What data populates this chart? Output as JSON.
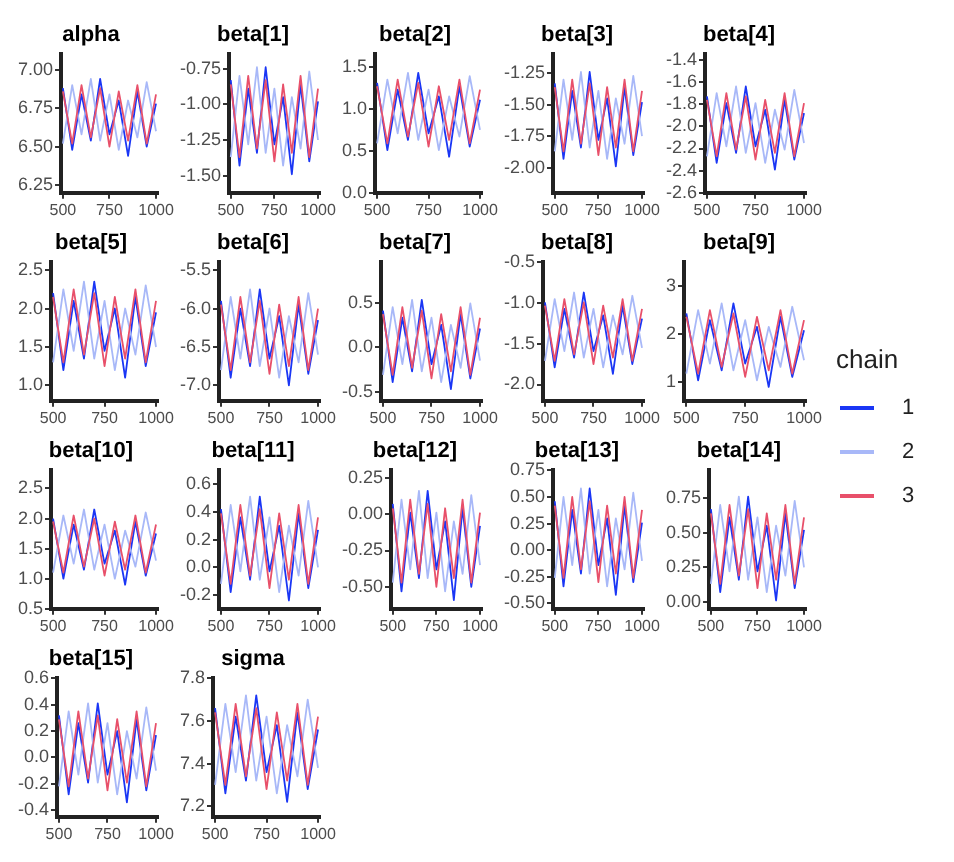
{
  "chart_data": [
    {
      "type": "line",
      "title": "alpha",
      "legend": "right",
      "legend_title": "chain",
      "x": [
        500,
        550,
        600,
        650,
        700,
        750,
        800,
        850,
        900,
        950,
        1000
      ],
      "xlim": [
        490,
        1010
      ],
      "xticks": [
        500,
        750,
        1000
      ],
      "ylim": [
        6.2,
        7.1
      ],
      "yticks": [
        {
          "value": 6.25,
          "label": "6.25"
        },
        {
          "value": 6.5,
          "label": "6.50"
        },
        6.75,
        {
          "value": 7,
          "label": "7.00"
        }
      ],
      "series": [
        {
          "name": "1",
          "color": "#1a36f5",
          "values": [
            6.88,
            6.48,
            6.84,
            6.54,
            6.94,
            6.58,
            6.8,
            6.44,
            6.86,
            6.5,
            6.78
          ]
        },
        {
          "name": "2",
          "color": "#a8b8f8",
          "values": [
            6.52,
            6.9,
            6.58,
            6.94,
            6.54,
            6.84,
            6.48,
            6.8,
            6.56,
            6.92,
            6.6
          ]
        },
        {
          "name": "3",
          "color": "#e8506a",
          "values": [
            6.86,
            6.52,
            6.9,
            6.56,
            6.88,
            6.5,
            6.86,
            6.54,
            6.9,
            6.52,
            6.84
          ]
        }
      ]
    },
    {
      "type": "line",
      "title": "beta[1]",
      "x": [
        500,
        550,
        600,
        650,
        700,
        750,
        800,
        850,
        900,
        950,
        1000
      ],
      "xlim": [
        490,
        1010
      ],
      "xticks": [
        500,
        750,
        1000
      ],
      "ylim": [
        -1.62,
        -0.65
      ],
      "yticks": [
        {
          "value": -1.5,
          "label": "-1.50"
        },
        -1.25,
        {
          "value": -1,
          "label": "-1.00"
        },
        -0.75
      ],
      "series": [
        {
          "name": "1",
          "color": "#1a36f5",
          "values": [
            -0.83,
            -1.43,
            -0.89,
            -1.34,
            -0.74,
            -1.28,
            -0.95,
            -1.49,
            -0.86,
            -1.4,
            -0.98
          ]
        },
        {
          "name": "2",
          "color": "#a8b8f8",
          "values": [
            -1.37,
            -0.8,
            -1.28,
            -0.74,
            -1.34,
            -0.89,
            -1.43,
            -0.95,
            -1.31,
            -0.77,
            -1.25
          ]
        },
        {
          "name": "3",
          "color": "#e8506a",
          "values": [
            -0.86,
            -1.37,
            -0.8,
            -1.31,
            -0.83,
            -1.4,
            -0.86,
            -1.34,
            -0.8,
            -1.37,
            -0.89
          ]
        }
      ]
    },
    {
      "type": "line",
      "title": "beta[2]",
      "x": [
        500,
        550,
        600,
        650,
        700,
        750,
        800,
        850,
        900,
        950,
        1000
      ],
      "xlim": [
        490,
        1010
      ],
      "xticks": [
        500,
        750,
        1000
      ],
      "ylim": [
        0,
        1.65
      ],
      "yticks": [
        {
          "value": 0,
          "label": "0.0"
        },
        0.5,
        {
          "value": 1,
          "label": "1.0"
        },
        1.5
      ],
      "series": [
        {
          "name": "1",
          "color": "#1a36f5",
          "values": [
            1.31,
            0.51,
            1.23,
            0.63,
            1.43,
            0.71,
            1.15,
            0.43,
            1.27,
            0.55,
            1.11
          ]
        },
        {
          "name": "2",
          "color": "#a8b8f8",
          "values": [
            0.59,
            1.35,
            0.71,
            1.43,
            0.63,
            1.23,
            0.51,
            1.15,
            0.67,
            1.39,
            0.75
          ]
        },
        {
          "name": "3",
          "color": "#e8506a",
          "values": [
            1.27,
            0.59,
            1.35,
            0.67,
            1.31,
            0.55,
            1.27,
            0.63,
            1.35,
            0.59,
            1.23
          ]
        }
      ]
    },
    {
      "type": "line",
      "title": "beta[3]",
      "x": [
        500,
        550,
        600,
        650,
        700,
        750,
        800,
        850,
        900,
        950,
        1000
      ],
      "xlim": [
        490,
        1010
      ],
      "xticks": [
        500,
        750,
        1000
      ],
      "ylim": [
        -2.2,
        -1.1
      ],
      "yticks": [
        {
          "value": -2,
          "label": "-2.00"
        },
        -1.75,
        {
          "value": -1.5,
          "label": "-1.50"
        },
        -1.25
      ],
      "series": [
        {
          "name": "1",
          "color": "#1a36f5",
          "values": [
            -1.33,
            -1.93,
            -1.39,
            -1.84,
            -1.24,
            -1.78,
            -1.45,
            -1.99,
            -1.36,
            -1.9,
            -1.48
          ]
        },
        {
          "name": "2",
          "color": "#a8b8f8",
          "values": [
            -1.87,
            -1.3,
            -1.78,
            -1.24,
            -1.84,
            -1.39,
            -1.93,
            -1.45,
            -1.81,
            -1.27,
            -1.75
          ]
        },
        {
          "name": "3",
          "color": "#e8506a",
          "values": [
            -1.36,
            -1.87,
            -1.3,
            -1.81,
            -1.33,
            -1.9,
            -1.36,
            -1.84,
            -1.3,
            -1.87,
            -1.39
          ]
        }
      ]
    },
    {
      "type": "line",
      "title": "beta[4]",
      "x": [
        500,
        550,
        600,
        650,
        700,
        750,
        800,
        850,
        900,
        950,
        1000
      ],
      "xlim": [
        490,
        1010
      ],
      "xticks": [
        500,
        750,
        1000
      ],
      "ylim": [
        -2.6,
        -1.35
      ],
      "yticks": [
        -2.6,
        -2.4,
        -2.2,
        {
          "value": -2,
          "label": "-2.0"
        },
        -1.8,
        -1.6,
        -1.4
      ],
      "series": [
        {
          "name": "1",
          "color": "#1a36f5",
          "values": [
            -1.73,
            -2.33,
            -1.79,
            -2.24,
            -1.64,
            -2.18,
            -1.85,
            -2.39,
            -1.76,
            -2.3,
            -1.88
          ]
        },
        {
          "name": "2",
          "color": "#a8b8f8",
          "values": [
            -2.27,
            -1.7,
            -2.18,
            -1.64,
            -2.24,
            -1.79,
            -2.33,
            -1.85,
            -2.21,
            -1.67,
            -2.15
          ]
        },
        {
          "name": "3",
          "color": "#e8506a",
          "values": [
            -1.76,
            -2.27,
            -1.7,
            -2.21,
            -1.73,
            -2.3,
            -1.76,
            -2.24,
            -1.7,
            -2.27,
            -1.79
          ]
        }
      ]
    },
    {
      "type": "line",
      "title": "beta[5]",
      "x": [
        500,
        550,
        600,
        650,
        700,
        750,
        800,
        850,
        900,
        950,
        1000
      ],
      "xlim": [
        490,
        1010
      ],
      "xticks": [
        500,
        750,
        1000
      ],
      "ylim": [
        0.8,
        2.6
      ],
      "yticks": [
        {
          "value": 1,
          "label": "1.0"
        },
        1.5,
        {
          "value": 2,
          "label": "2.0"
        },
        2.5
      ],
      "series": [
        {
          "name": "1",
          "color": "#1a36f5",
          "values": [
            2.2,
            1.2,
            2.1,
            1.35,
            2.35,
            1.45,
            2.0,
            1.1,
            2.15,
            1.25,
            1.95
          ]
        },
        {
          "name": "2",
          "color": "#a8b8f8",
          "values": [
            1.3,
            2.25,
            1.45,
            2.35,
            1.35,
            2.1,
            1.2,
            2.0,
            1.4,
            2.3,
            1.5
          ]
        },
        {
          "name": "3",
          "color": "#e8506a",
          "values": [
            2.15,
            1.3,
            2.25,
            1.4,
            2.2,
            1.25,
            2.15,
            1.35,
            2.25,
            1.3,
            2.1
          ]
        }
      ]
    },
    {
      "type": "line",
      "title": "beta[6]",
      "x": [
        500,
        550,
        600,
        650,
        700,
        750,
        800,
        850,
        900,
        950,
        1000
      ],
      "xlim": [
        490,
        1010
      ],
      "xticks": [
        500,
        750,
        1000
      ],
      "ylim": [
        -7.2,
        -5.4
      ],
      "yticks": [
        {
          "value": -7,
          "label": "-7.0"
        },
        -6.5,
        {
          "value": -6,
          "label": "-6.0"
        },
        -5.5
      ],
      "series": [
        {
          "name": "1",
          "color": "#1a36f5",
          "values": [
            -5.9,
            -6.9,
            -6.0,
            -6.75,
            -5.75,
            -6.65,
            -6.1,
            -7.0,
            -5.95,
            -6.85,
            -6.15
          ]
        },
        {
          "name": "2",
          "color": "#a8b8f8",
          "values": [
            -6.8,
            -5.85,
            -6.65,
            -5.75,
            -6.75,
            -6.0,
            -6.9,
            -6.1,
            -6.7,
            -5.8,
            -6.6
          ]
        },
        {
          "name": "3",
          "color": "#e8506a",
          "values": [
            -5.95,
            -6.8,
            -5.85,
            -6.7,
            -5.9,
            -6.85,
            -5.95,
            -6.75,
            -5.85,
            -6.8,
            -6.0
          ]
        }
      ]
    },
    {
      "type": "line",
      "title": "beta[7]",
      "x": [
        500,
        550,
        600,
        650,
        700,
        750,
        800,
        850,
        900,
        950,
        1000
      ],
      "xlim": [
        490,
        1010
      ],
      "xticks": [
        500,
        750,
        1000
      ],
      "ylim": [
        -0.6,
        0.95
      ],
      "yticks": [
        -0.5,
        {
          "value": 0,
          "label": "0.0"
        },
        0.5
      ],
      "series": [
        {
          "name": "1",
          "color": "#1a36f5",
          "values": [
            0.41,
            -0.39,
            0.33,
            -0.27,
            0.53,
            -0.19,
            0.25,
            -0.47,
            0.37,
            -0.35,
            0.21
          ]
        },
        {
          "name": "2",
          "color": "#a8b8f8",
          "values": [
            -0.31,
            0.45,
            -0.19,
            0.53,
            -0.27,
            0.33,
            -0.39,
            0.25,
            -0.23,
            0.49,
            -0.15
          ]
        },
        {
          "name": "3",
          "color": "#e8506a",
          "values": [
            0.37,
            -0.31,
            0.45,
            -0.23,
            0.41,
            -0.35,
            0.37,
            -0.27,
            0.45,
            -0.31,
            0.33
          ]
        }
      ]
    },
    {
      "type": "line",
      "title": "beta[8]",
      "x": [
        500,
        550,
        600,
        650,
        700,
        750,
        800,
        850,
        900,
        950,
        1000
      ],
      "xlim": [
        490,
        1010
      ],
      "xticks": [
        500,
        750,
        1000
      ],
      "ylim": [
        -2.2,
        -0.5
      ],
      "yticks": [
        {
          "value": -2,
          "label": "-2.0"
        },
        -1.5,
        {
          "value": -1,
          "label": "-1.0"
        },
        -0.5
      ],
      "series": [
        {
          "name": "1",
          "color": "#1a36f5",
          "values": [
            -0.99,
            -1.79,
            -1.07,
            -1.67,
            -0.87,
            -1.59,
            -1.15,
            -1.87,
            -1.03,
            -1.75,
            -1.19
          ]
        },
        {
          "name": "2",
          "color": "#a8b8f8",
          "values": [
            -1.71,
            -0.95,
            -1.59,
            -0.87,
            -1.67,
            -1.07,
            -1.79,
            -1.15,
            -1.63,
            -0.91,
            -1.55
          ]
        },
        {
          "name": "3",
          "color": "#e8506a",
          "values": [
            -1.03,
            -1.71,
            -0.95,
            -1.63,
            -0.99,
            -1.75,
            -1.03,
            -1.67,
            -0.95,
            -1.71,
            -1.07
          ]
        }
      ]
    },
    {
      "type": "line",
      "title": "beta[9]",
      "x": [
        500,
        550,
        600,
        650,
        700,
        750,
        800,
        850,
        900,
        950,
        1000
      ],
      "xlim": [
        490,
        1010
      ],
      "xticks": [
        500,
        750,
        1000
      ],
      "ylim": [
        0.6,
        3.5
      ],
      "yticks": [
        1,
        2,
        3
      ],
      "series": [
        {
          "name": "1",
          "color": "#1a36f5",
          "values": [
            2.43,
            1.03,
            2.29,
            1.24,
            2.64,
            1.38,
            2.15,
            0.89,
            2.36,
            1.1,
            2.08
          ]
        },
        {
          "name": "2",
          "color": "#a8b8f8",
          "values": [
            1.17,
            2.5,
            1.38,
            2.64,
            1.24,
            2.29,
            1.03,
            2.15,
            1.31,
            2.57,
            1.45
          ]
        },
        {
          "name": "3",
          "color": "#e8506a",
          "values": [
            2.36,
            1.17,
            2.5,
            1.31,
            2.43,
            1.1,
            2.36,
            1.24,
            2.5,
            1.17,
            2.29
          ]
        }
      ]
    },
    {
      "type": "line",
      "title": "beta[10]",
      "x": [
        500,
        550,
        600,
        650,
        700,
        750,
        800,
        850,
        900,
        950,
        1000
      ],
      "xlim": [
        490,
        1010
      ],
      "xticks": [
        500,
        750,
        1000
      ],
      "ylim": [
        0.5,
        2.8
      ],
      "yticks": [
        0.5,
        {
          "value": 1,
          "label": "1.0"
        },
        1.5,
        {
          "value": 2,
          "label": "2.0"
        },
        2.5
      ],
      "series": [
        {
          "name": "1",
          "color": "#1a36f5",
          "values": [
            2.0,
            1.0,
            1.9,
            1.15,
            2.15,
            1.25,
            1.8,
            0.9,
            1.95,
            1.05,
            1.75
          ]
        },
        {
          "name": "2",
          "color": "#a8b8f8",
          "values": [
            1.1,
            2.05,
            1.25,
            2.15,
            1.15,
            1.9,
            1.0,
            1.8,
            1.2,
            2.1,
            1.3
          ]
        },
        {
          "name": "3",
          "color": "#e8506a",
          "values": [
            1.95,
            1.1,
            2.05,
            1.2,
            2.0,
            1.05,
            1.95,
            1.15,
            2.05,
            1.1,
            1.9
          ]
        }
      ]
    },
    {
      "type": "line",
      "title": "beta[11]",
      "x": [
        500,
        550,
        600,
        650,
        700,
        750,
        800,
        850,
        900,
        950,
        1000
      ],
      "xlim": [
        490,
        1010
      ],
      "xticks": [
        500,
        750,
        1000
      ],
      "ylim": [
        -0.3,
        0.7
      ],
      "yticks": [
        -0.2,
        {
          "value": 0,
          "label": "0.0"
        },
        0.2,
        0.4,
        0.6
      ],
      "series": [
        {
          "name": "1",
          "color": "#1a36f5",
          "values": [
            0.42,
            -0.18,
            0.36,
            -0.09,
            0.51,
            -0.03,
            0.3,
            -0.24,
            0.39,
            -0.15,
            0.27
          ]
        },
        {
          "name": "2",
          "color": "#a8b8f8",
          "values": [
            -0.12,
            0.45,
            -0.03,
            0.51,
            -0.09,
            0.36,
            -0.18,
            0.3,
            -0.06,
            0.48,
            0.0
          ]
        },
        {
          "name": "3",
          "color": "#e8506a",
          "values": [
            0.39,
            -0.12,
            0.45,
            -0.06,
            0.42,
            -0.15,
            0.39,
            -0.09,
            0.45,
            -0.12,
            0.36
          ]
        }
      ]
    },
    {
      "type": "line",
      "title": "beta[12]",
      "x": [
        500,
        550,
        600,
        650,
        700,
        750,
        800,
        850,
        900,
        950,
        1000
      ],
      "xlim": [
        490,
        1010
      ],
      "xticks": [
        500,
        750,
        1000
      ],
      "ylim": [
        -0.65,
        0.3
      ],
      "yticks": [
        {
          "value": -0.5,
          "label": "-0.50"
        },
        -0.25,
        {
          "value": 0,
          "label": "0.00"
        },
        0.25
      ],
      "series": [
        {
          "name": "1",
          "color": "#1a36f5",
          "values": [
            0.07,
            -0.53,
            0.01,
            -0.44,
            0.16,
            -0.38,
            -0.05,
            -0.59,
            0.04,
            -0.5,
            -0.08
          ]
        },
        {
          "name": "2",
          "color": "#a8b8f8",
          "values": [
            -0.47,
            0.1,
            -0.38,
            0.16,
            -0.44,
            0.01,
            -0.53,
            -0.05,
            -0.41,
            0.13,
            -0.35
          ]
        },
        {
          "name": "3",
          "color": "#e8506a",
          "values": [
            0.04,
            -0.47,
            0.1,
            -0.41,
            0.07,
            -0.5,
            0.04,
            -0.44,
            0.1,
            -0.47,
            0.01
          ]
        }
      ]
    },
    {
      "type": "line",
      "title": "beta[13]",
      "x": [
        500,
        550,
        600,
        650,
        700,
        750,
        800,
        850,
        900,
        950,
        1000
      ],
      "xlim": [
        490,
        1010
      ],
      "xticks": [
        500,
        750,
        1000
      ],
      "ylim": [
        -0.55,
        0.75
      ],
      "yticks": [
        {
          "value": -0.5,
          "label": "-0.50"
        },
        -0.25,
        {
          "value": 0,
          "label": "0.00"
        },
        0.25,
        {
          "value": 0.5,
          "label": "0.50"
        },
        0.75
      ],
      "series": [
        {
          "name": "1",
          "color": "#1a36f5",
          "values": [
            0.46,
            -0.34,
            0.38,
            -0.22,
            0.58,
            -0.14,
            0.3,
            -0.42,
            0.42,
            -0.3,
            0.26
          ]
        },
        {
          "name": "2",
          "color": "#a8b8f8",
          "values": [
            -0.26,
            0.5,
            -0.14,
            0.58,
            -0.22,
            0.38,
            -0.34,
            0.3,
            -0.18,
            0.54,
            -0.1
          ]
        },
        {
          "name": "3",
          "color": "#e8506a",
          "values": [
            0.42,
            -0.26,
            0.5,
            -0.18,
            0.46,
            -0.3,
            0.42,
            -0.22,
            0.5,
            -0.26,
            0.38
          ]
        }
      ]
    },
    {
      "type": "line",
      "title": "beta[14]",
      "x": [
        500,
        550,
        600,
        650,
        700,
        750,
        800,
        850,
        900,
        950,
        1000
      ],
      "xlim": [
        490,
        1010
      ],
      "xticks": [
        500,
        750,
        1000
      ],
      "ylim": [
        -0.05,
        0.95
      ],
      "yticks": [
        {
          "value": 0,
          "label": "0.00"
        },
        0.25,
        {
          "value": 0.5,
          "label": "0.50"
        },
        0.75
      ],
      "series": [
        {
          "name": "1",
          "color": "#1a36f5",
          "values": [
            0.67,
            0.07,
            0.61,
            0.16,
            0.76,
            0.22,
            0.55,
            0.01,
            0.64,
            0.1,
            0.52
          ]
        },
        {
          "name": "2",
          "color": "#a8b8f8",
          "values": [
            0.13,
            0.7,
            0.22,
            0.76,
            0.16,
            0.61,
            0.07,
            0.55,
            0.19,
            0.73,
            0.25
          ]
        },
        {
          "name": "3",
          "color": "#e8506a",
          "values": [
            0.64,
            0.13,
            0.7,
            0.19,
            0.67,
            0.1,
            0.64,
            0.16,
            0.7,
            0.13,
            0.61
          ]
        }
      ]
    },
    {
      "type": "line",
      "title": "beta[15]",
      "x": [
        500,
        550,
        600,
        650,
        700,
        750,
        800,
        850,
        900,
        950,
        1000
      ],
      "xlim": [
        490,
        1010
      ],
      "xticks": [
        500,
        750,
        1000
      ],
      "ylim": [
        -0.45,
        0.6
      ],
      "yticks": [
        -0.4,
        -0.2,
        {
          "value": 0,
          "label": "0.0"
        },
        0.2,
        0.4,
        0.6
      ],
      "series": [
        {
          "name": "1",
          "color": "#1a36f5",
          "values": [
            0.32,
            -0.28,
            0.26,
            -0.19,
            0.41,
            -0.13,
            0.2,
            -0.34,
            0.29,
            -0.25,
            0.17
          ]
        },
        {
          "name": "2",
          "color": "#a8b8f8",
          "values": [
            -0.22,
            0.35,
            -0.13,
            0.41,
            -0.19,
            0.26,
            -0.28,
            0.2,
            -0.16,
            0.38,
            -0.1
          ]
        },
        {
          "name": "3",
          "color": "#e8506a",
          "values": [
            0.29,
            -0.22,
            0.35,
            -0.16,
            0.32,
            -0.25,
            0.29,
            -0.19,
            0.35,
            -0.22,
            0.26
          ]
        }
      ]
    },
    {
      "type": "line",
      "title": "sigma",
      "x": [
        500,
        550,
        600,
        650,
        700,
        750,
        800,
        850,
        900,
        950,
        1000
      ],
      "xlim": [
        490,
        1010
      ],
      "xticks": [
        500,
        750,
        1000
      ],
      "ylim": [
        7.15,
        7.8
      ],
      "yticks": [
        7.2,
        7.4,
        7.6,
        7.8
      ],
      "series": [
        {
          "name": "1",
          "color": "#1a36f5",
          "values": [
            7.66,
            7.26,
            7.62,
            7.32,
            7.72,
            7.36,
            7.58,
            7.22,
            7.64,
            7.28,
            7.56
          ]
        },
        {
          "name": "2",
          "color": "#a8b8f8",
          "values": [
            7.3,
            7.68,
            7.36,
            7.72,
            7.32,
            7.62,
            7.26,
            7.58,
            7.34,
            7.7,
            7.38
          ]
        },
        {
          "name": "3",
          "color": "#e8506a",
          "values": [
            7.64,
            7.3,
            7.68,
            7.34,
            7.66,
            7.28,
            7.64,
            7.32,
            7.68,
            7.3,
            7.62
          ]
        }
      ]
    }
  ]
}
